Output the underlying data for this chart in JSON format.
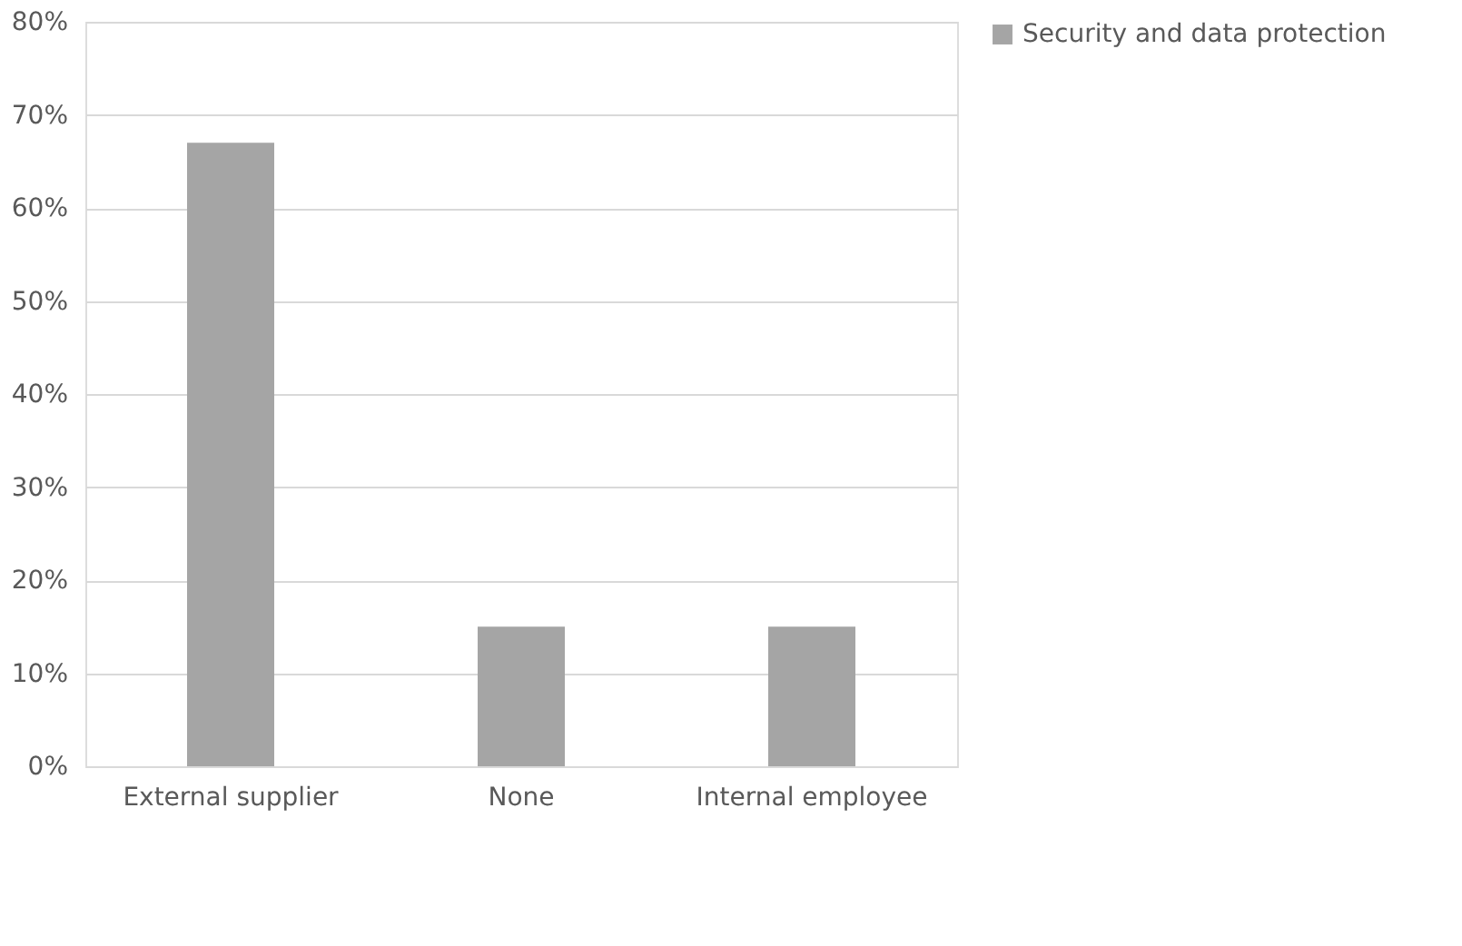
{
  "chart_data": {
    "type": "bar",
    "categories": [
      "External supplier",
      "None",
      "Internal employee"
    ],
    "series": [
      {
        "name": "Security and data protection",
        "color": "#a5a5a5",
        "values": [
          67,
          15,
          15
        ]
      }
    ],
    "ylim": [
      0,
      80
    ],
    "yticks": [
      {
        "value": 0,
        "label": "0%"
      },
      {
        "value": 10,
        "label": "10%"
      },
      {
        "value": 20,
        "label": "20%"
      },
      {
        "value": 30,
        "label": "30%"
      },
      {
        "value": 40,
        "label": "40%"
      },
      {
        "value": 50,
        "label": "50%"
      },
      {
        "value": 60,
        "label": "60%"
      },
      {
        "value": 70,
        "label": "70%"
      },
      {
        "value": 80,
        "label": "80%"
      }
    ],
    "grid": "y",
    "legend": "right"
  }
}
